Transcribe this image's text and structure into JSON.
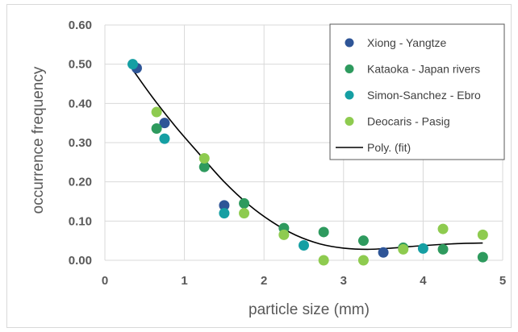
{
  "chart_data": {
    "type": "scatter",
    "title": "",
    "xlabel": "particle size (mm)",
    "ylabel": "occurrence frequency",
    "xlim": [
      0,
      5
    ],
    "ylim": [
      0,
      0.6
    ],
    "x_ticks": [
      0,
      1,
      2,
      3,
      4,
      5
    ],
    "x_tick_labels": [
      "0",
      "1",
      "2",
      "3",
      "4",
      "5"
    ],
    "y_ticks": [
      0,
      0.1,
      0.2,
      0.3,
      0.4,
      0.5,
      0.6
    ],
    "y_tick_labels": [
      "0.00",
      "0.10",
      "0.20",
      "0.30",
      "0.40",
      "0.50",
      "0.60"
    ],
    "grid": true,
    "legend_position": "top-right",
    "series": [
      {
        "name": "Xiong - Yangtze",
        "color": "#2e5597",
        "points": [
          [
            0.4,
            0.49
          ],
          [
            0.75,
            0.35
          ],
          [
            1.5,
            0.14
          ],
          [
            3.5,
            0.02
          ]
        ]
      },
      {
        "name": "Kataoka - Japan rivers",
        "color": "#2e9a5e",
        "points": [
          [
            0.65,
            0.336
          ],
          [
            1.25,
            0.238
          ],
          [
            1.75,
            0.145
          ],
          [
            2.25,
            0.082
          ],
          [
            2.75,
            0.072
          ],
          [
            3.25,
            0.05
          ],
          [
            3.75,
            0.032
          ],
          [
            4.25,
            0.028
          ],
          [
            4.75,
            0.008
          ]
        ]
      },
      {
        "name": "Simon-Sanchez - Ebro",
        "color": "#159fa3",
        "points": [
          [
            0.35,
            0.5
          ],
          [
            0.75,
            0.31
          ],
          [
            1.5,
            0.12
          ],
          [
            2.5,
            0.038
          ],
          [
            4.0,
            0.03
          ]
        ]
      },
      {
        "name": "Deocaris - Pasig",
        "color": "#8ecb4f",
        "points": [
          [
            0.65,
            0.378
          ],
          [
            1.25,
            0.26
          ],
          [
            1.75,
            0.12
          ],
          [
            2.25,
            0.065
          ],
          [
            2.75,
            0.0
          ],
          [
            3.25,
            0.0
          ],
          [
            3.75,
            0.028
          ],
          [
            4.25,
            0.08
          ],
          [
            4.75,
            0.065
          ]
        ]
      }
    ],
    "trendline": {
      "name": "Poly. (fit)",
      "color": "#000000",
      "points": [
        [
          0.35,
          0.486
        ],
        [
          0.6,
          0.415
        ],
        [
          0.9,
          0.338
        ],
        [
          1.2,
          0.268
        ],
        [
          1.5,
          0.2
        ],
        [
          1.8,
          0.143
        ],
        [
          2.1,
          0.098
        ],
        [
          2.4,
          0.064
        ],
        [
          2.7,
          0.042
        ],
        [
          3.0,
          0.031
        ],
        [
          3.3,
          0.028
        ],
        [
          3.6,
          0.031
        ],
        [
          3.9,
          0.036
        ],
        [
          4.2,
          0.04
        ],
        [
          4.5,
          0.043
        ],
        [
          4.75,
          0.044
        ]
      ]
    }
  }
}
